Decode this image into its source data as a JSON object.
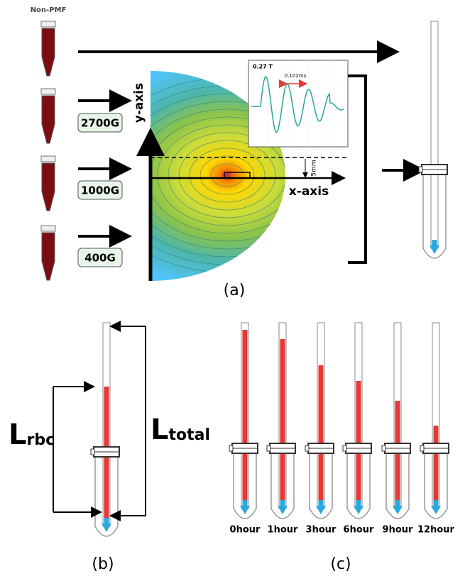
{
  "panel_a": {
    "control_label": "Non-PMF",
    "forces": [
      "2700G",
      "1000G",
      "400G"
    ],
    "y_axis": "y-axis",
    "x_axis": "x-axis",
    "distance": "5mm",
    "inset": {
      "field": "0.27 T",
      "period": "0.102ms"
    },
    "caption": "(a)"
  },
  "panel_b": {
    "l_rbc": {
      "symbol": "L",
      "subscript": "rbc"
    },
    "l_total": {
      "symbol": "L",
      "subscript": "total"
    },
    "caption": "(b)"
  },
  "panel_c": {
    "times": [
      "0hour",
      "1hour",
      "3hour",
      "6hour",
      "9hour",
      "12hour"
    ],
    "caption": "(c)"
  }
}
